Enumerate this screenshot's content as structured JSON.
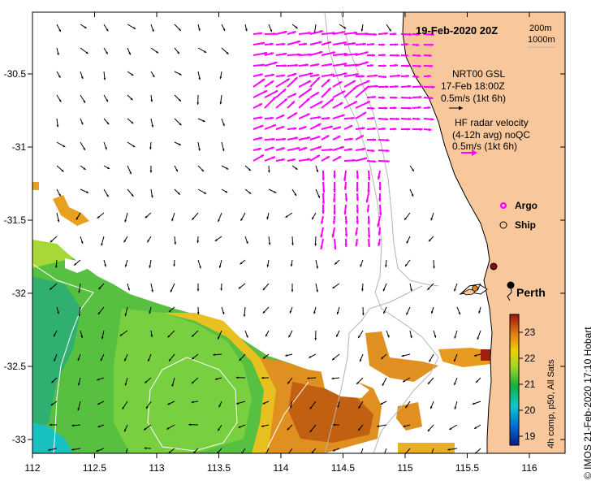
{
  "map": {
    "date_label": "19-Feb-2020 20Z",
    "contours": {
      "label_1": "200m",
      "label_2": "1000m"
    },
    "model_legend": {
      "line1": "NRT00 GSL",
      "line2": "17-Feb 18:00Z",
      "line3": "0.5m/s (1kt 6h)"
    },
    "radar_legend": {
      "line1": "HF radar velocity",
      "line2": "(4-12h avg) noQC",
      "line3": "0.5m/s (1kt 6h)"
    },
    "markers": {
      "argo": "Argo",
      "ship": "Ship"
    },
    "city": "Perth",
    "x_axis": {
      "ticks": [
        "112",
        "112.5",
        "113",
        "113.5",
        "114",
        "114.5",
        "115",
        "115.5",
        "116"
      ]
    },
    "y_axis": {
      "ticks": [
        "-30.5",
        "-31",
        "-31.5",
        "-32",
        "-32.5",
        "-33"
      ]
    },
    "colorbar": {
      "ticks": [
        "23",
        "22",
        "21",
        "20",
        "19"
      ],
      "label": "4h comp, p50, All Sats"
    },
    "credit": "© IMOS 21-Feb-2020 17:10 Hobart",
    "colors": {
      "land": "#f8c89c",
      "radar_arrow": "#ff00ff",
      "model_arrow": "#000000",
      "contour": "#b4b4b4"
    }
  }
}
